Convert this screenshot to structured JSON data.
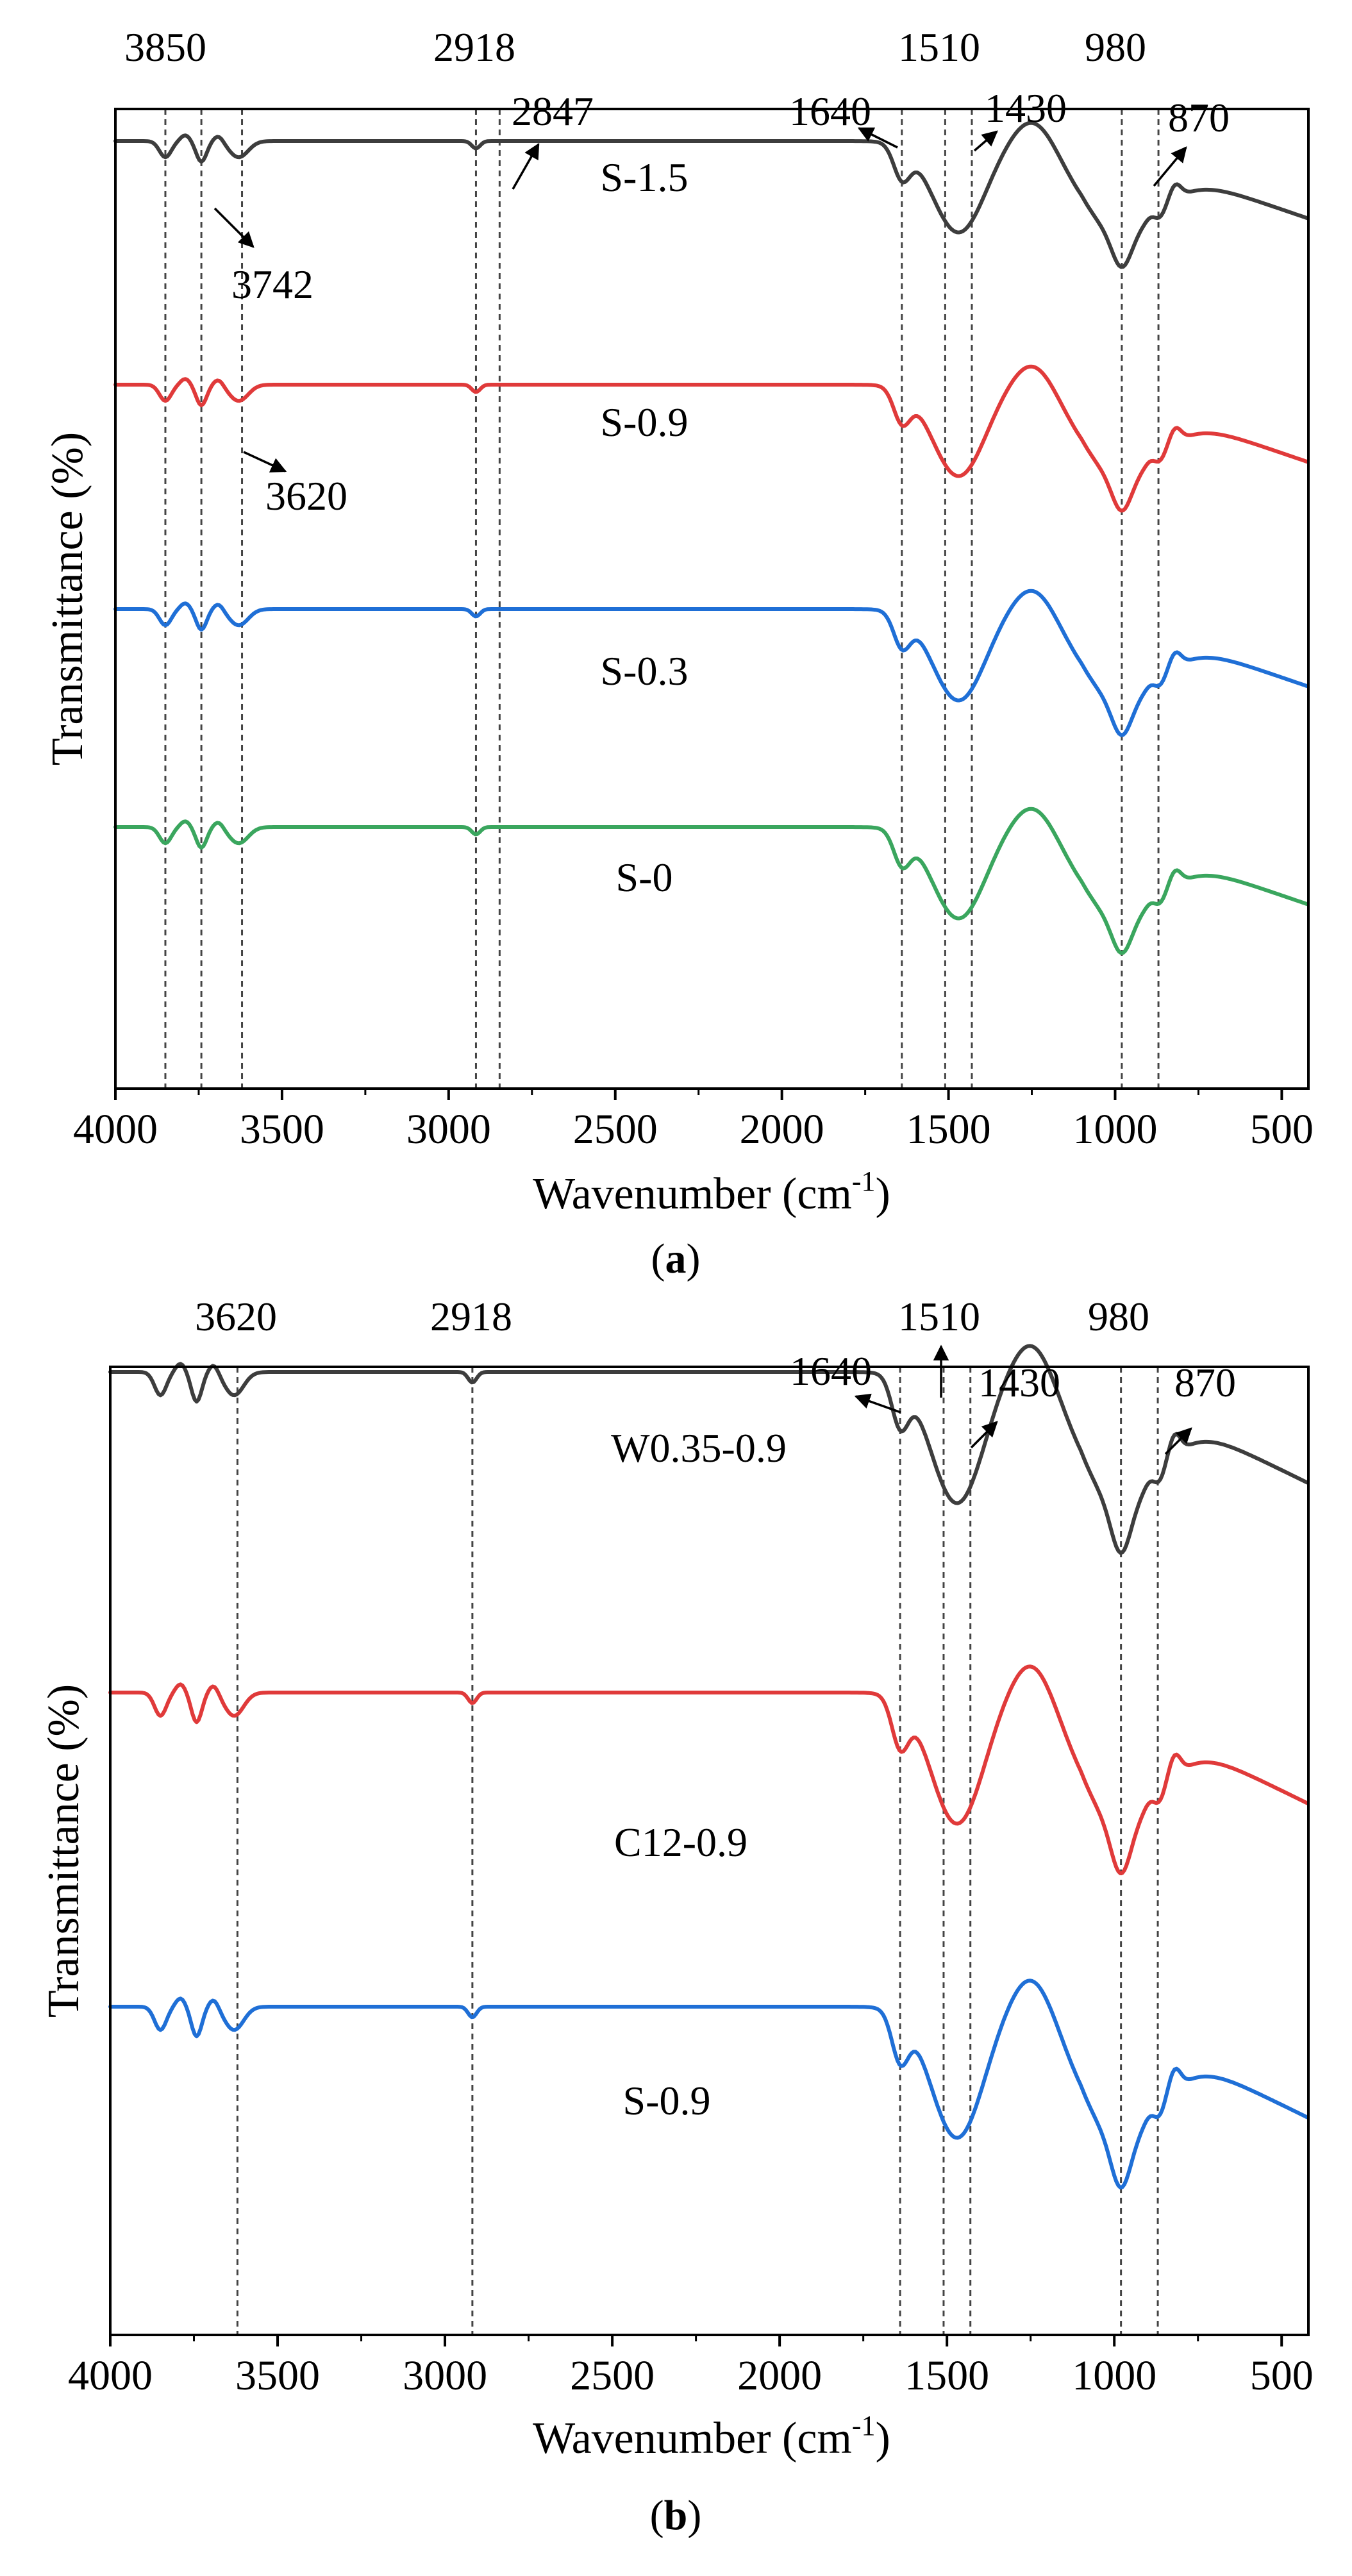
{
  "chart_data": [
    {
      "type": "line",
      "panel": "a",
      "xlabel_main": "Wavenumber (cm",
      "xlabel_sup": "-1",
      "xlabel_close": ")",
      "ylabel": "Transmittance (%)",
      "xlim": [
        4000,
        420
      ],
      "xticks": [
        4000,
        3500,
        3000,
        2500,
        2000,
        1500,
        1000,
        500
      ],
      "peak_lines": [
        3850,
        3742,
        3620,
        2918,
        2847,
        1640,
        1510,
        1430,
        980,
        870
      ],
      "peak_labels": [
        "3850",
        "3742",
        "3620",
        "2918",
        "2847",
        "1640",
        "1510",
        "1430",
        "980",
        "870"
      ],
      "series": [
        {
          "name": "S-1.5",
          "color": "#3aa65e",
          "offset": 3
        },
        {
          "name": "S-0.9",
          "color": "#1f6fd6",
          "offset": 2
        },
        {
          "name": "S-0.3",
          "color": "#e03a3a",
          "offset": 1
        },
        {
          "name": "S-0",
          "color": "#3d3d3d",
          "offset": 0
        }
      ]
    },
    {
      "type": "line",
      "panel": "b",
      "xlabel_main": "Wavenumber (cm",
      "xlabel_sup": "-1",
      "xlabel_close": ")",
      "ylabel": "Transmittance (%)",
      "xlim": [
        4000,
        420
      ],
      "xticks": [
        4000,
        3500,
        3000,
        2500,
        2000,
        1500,
        1000,
        500
      ],
      "peak_lines": [
        3620,
        2918,
        1640,
        1510,
        1430,
        980,
        870
      ],
      "peak_labels": [
        "3620",
        "2918",
        "1640",
        "1510",
        "1430",
        "980",
        "870"
      ],
      "series": [
        {
          "name": "W0.35-0.9",
          "color": "#1f6fd6",
          "offset": 2
        },
        {
          "name": "C12-0.9",
          "color": "#e03a3a",
          "offset": 1
        },
        {
          "name": "S-0.9",
          "color": "#3d3d3d",
          "offset": 0
        }
      ]
    }
  ],
  "panel_labels": {
    "a_open": "(",
    "a": "a",
    "a_close": ")",
    "b_open": "(",
    "b": "b",
    "b_close": ")"
  }
}
